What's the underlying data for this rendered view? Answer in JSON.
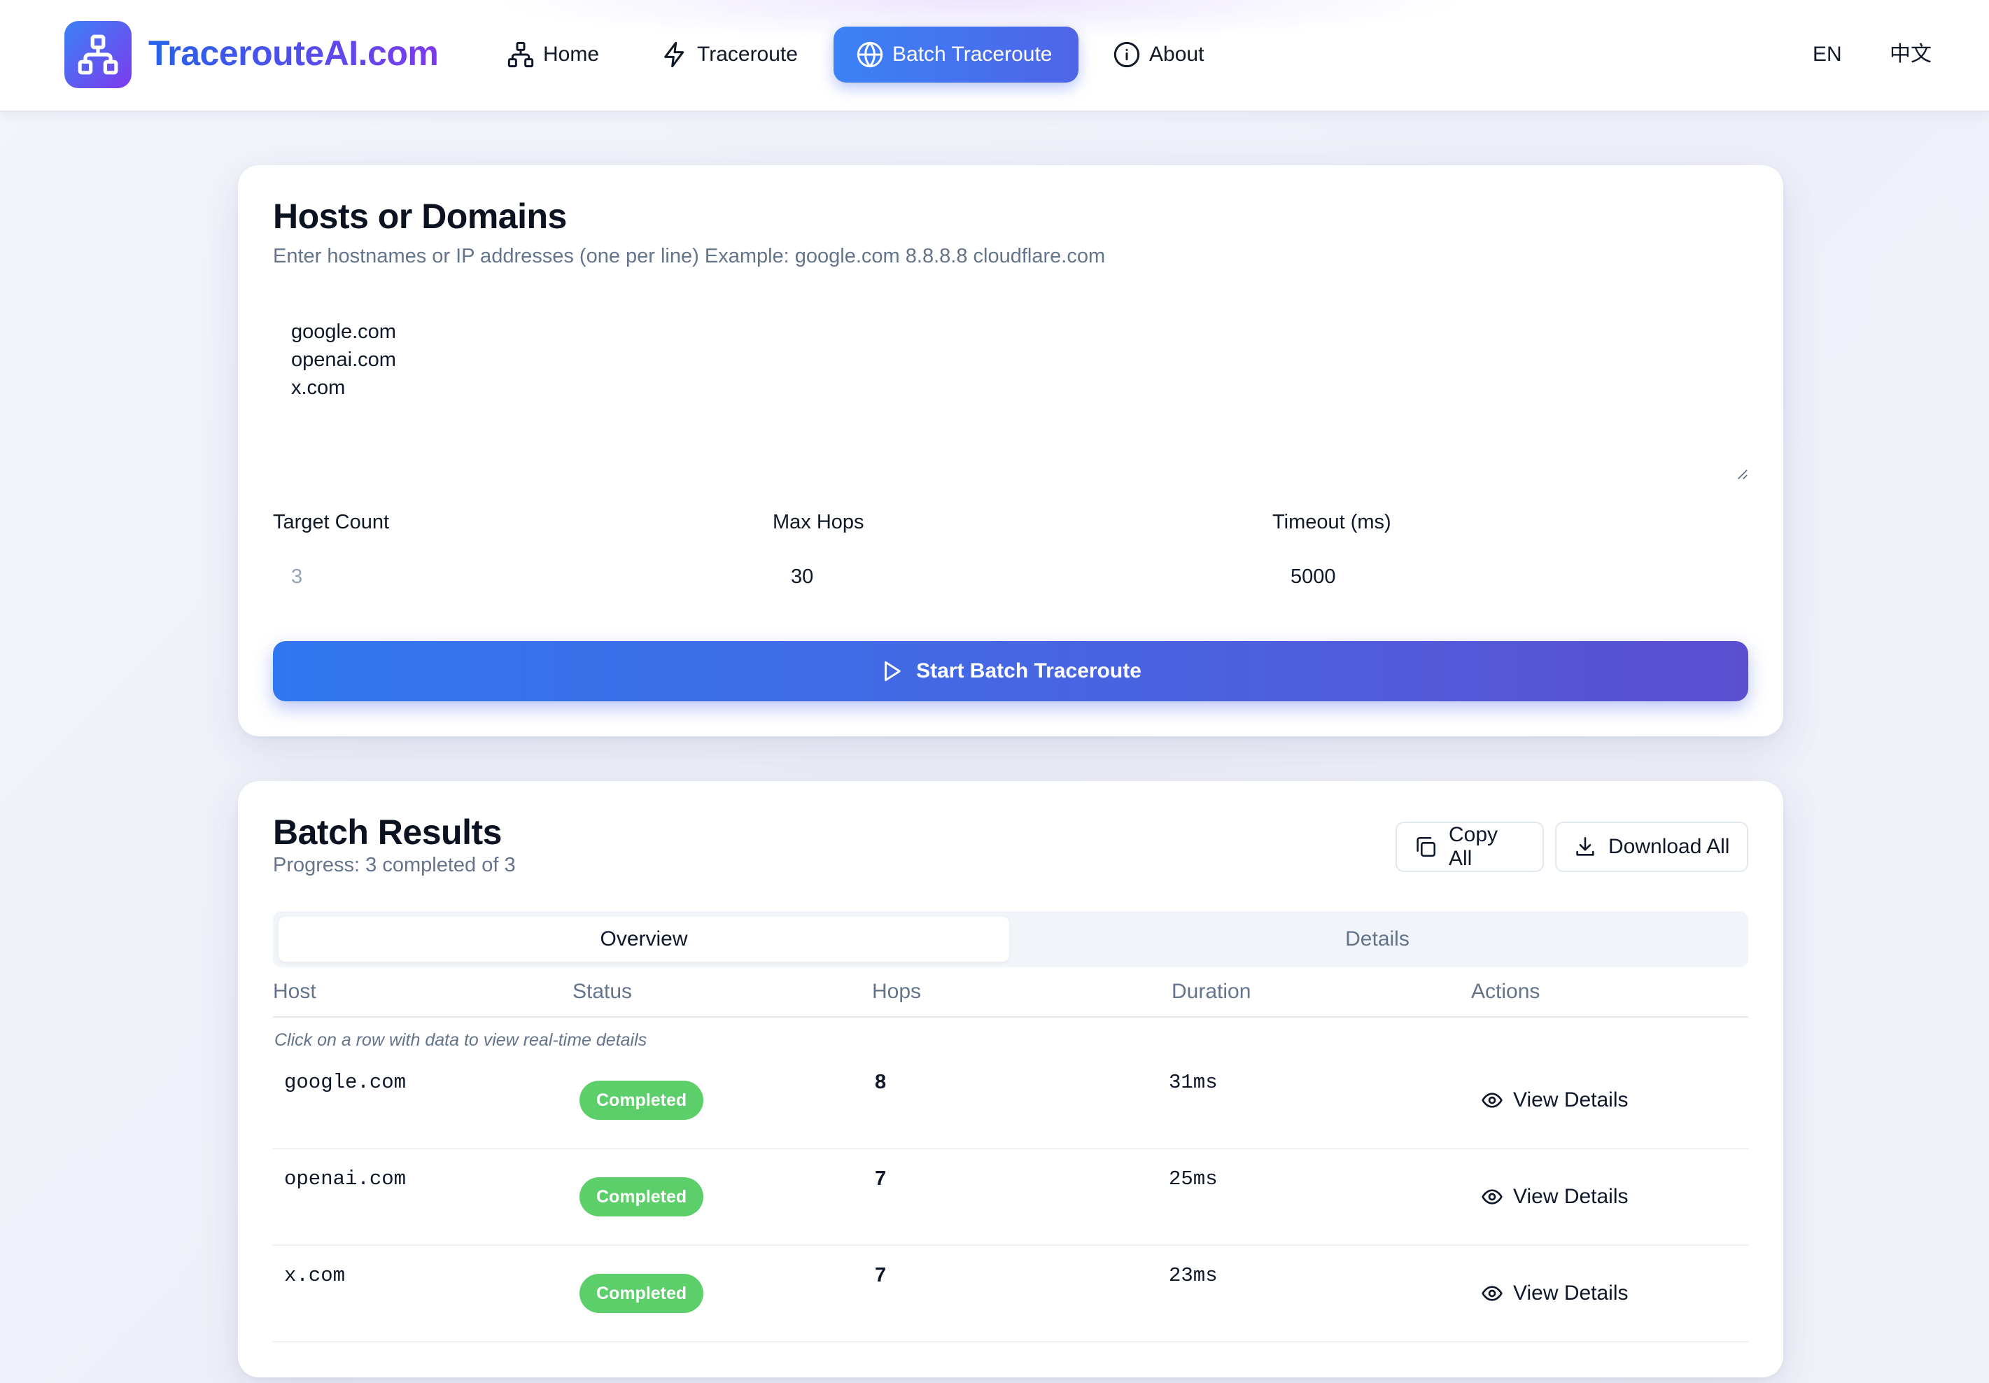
{
  "header": {
    "brand": "TracerouteAI.com",
    "nav": [
      {
        "label": "Home",
        "icon": "network-icon"
      },
      {
        "label": "Traceroute",
        "icon": "lightning-icon"
      },
      {
        "label": "Batch Traceroute",
        "icon": "globe-icon",
        "active": true
      },
      {
        "label": "About",
        "icon": "info-icon"
      }
    ],
    "lang_en": "EN",
    "lang_zh": "中文"
  },
  "hosts_card": {
    "title": "Hosts or Domains",
    "subtitle": "Enter hostnames or IP addresses (one per line) Example: google.com 8.8.8.8 cloudflare.com",
    "hosts": [
      "google.com",
      "openai.com",
      "x.com"
    ],
    "target_count_label": "Target Count",
    "target_count_value": "3",
    "max_hops_label": "Max Hops",
    "max_hops_value": "30",
    "timeout_label": "Timeout (ms)",
    "timeout_value": "5000",
    "start_button": "Start Batch Traceroute"
  },
  "results_card": {
    "title": "Batch Results",
    "progress": "Progress: 3 completed of 3",
    "copy_all": "Copy All",
    "download_all": "Download All",
    "tabs": [
      "Overview",
      "Details"
    ],
    "columns": [
      "Host",
      "Status",
      "Hops",
      "Duration",
      "Actions"
    ],
    "hint": "Click on a row with data to view real-time details",
    "rows": [
      {
        "host": "google.com",
        "status": "Completed",
        "hops": "8",
        "duration": "31ms",
        "action": "View Details"
      },
      {
        "host": "openai.com",
        "status": "Completed",
        "hops": "7",
        "duration": "25ms",
        "action": "View Details"
      },
      {
        "host": "x.com",
        "status": "Completed",
        "hops": "7",
        "duration": "23ms",
        "action": "View Details"
      }
    ]
  },
  "colors": {
    "accent": "#3b82f6",
    "accent_purple": "#7c3aed",
    "success": "#5ccf6a"
  }
}
